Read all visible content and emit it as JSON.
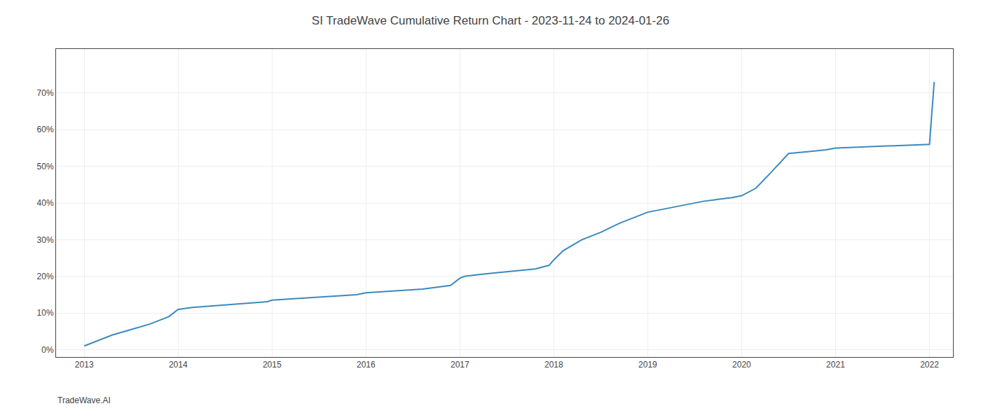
{
  "chart_data": {
    "type": "line",
    "title": "SI TradeWave Cumulative Return Chart - 2023-11-24 to 2024-01-26",
    "annotations": [
      "TradeWave.AI"
    ],
    "color": "#3a8abf",
    "grid": true,
    "x": [
      2013.0,
      2013.15,
      2013.3,
      2013.5,
      2013.7,
      2013.9,
      2014.0,
      2014.15,
      2014.4,
      2014.6,
      2014.8,
      2014.95,
      2015.0,
      2015.3,
      2015.6,
      2015.9,
      2016.0,
      2016.3,
      2016.6,
      2016.9,
      2017.0,
      2017.05,
      2017.2,
      2017.4,
      2017.6,
      2017.8,
      2017.95,
      2018.0,
      2018.1,
      2018.3,
      2018.5,
      2018.7,
      2018.9,
      2019.0,
      2019.2,
      2019.4,
      2019.6,
      2019.75,
      2019.9,
      2020.0,
      2020.15,
      2020.3,
      2020.5,
      2020.7,
      2020.9,
      2021.0,
      2021.3,
      2021.6,
      2021.9,
      2022.0,
      2022.05
    ],
    "values": [
      0.01,
      0.025,
      0.04,
      0.055,
      0.07,
      0.09,
      0.11,
      0.115,
      0.12,
      0.125,
      0.128,
      0.131,
      0.135,
      0.14,
      0.145,
      0.15,
      0.155,
      0.16,
      0.165,
      0.175,
      0.195,
      0.2,
      0.205,
      0.21,
      0.215,
      0.22,
      0.23,
      0.245,
      0.27,
      0.3,
      0.32,
      0.345,
      0.365,
      0.375,
      0.385,
      0.395,
      0.405,
      0.41,
      0.415,
      0.42,
      0.44,
      0.48,
      0.535,
      0.54,
      0.545,
      0.55,
      0.553,
      0.556,
      0.558,
      0.56,
      0.73
    ],
    "xlim": [
      2012.7,
      2022.25
    ],
    "xticks": [
      2013,
      2014,
      2015,
      2016,
      2017,
      2018,
      2019,
      2020,
      2021,
      2022
    ],
    "ylim": [
      -0.02,
      0.82
    ],
    "yticks": [
      {
        "value": 0.0,
        "label": "0%"
      },
      {
        "value": 0.1,
        "label": "10%"
      },
      {
        "value": 0.2,
        "label": "20%"
      },
      {
        "value": 0.3,
        "label": "30%"
      },
      {
        "value": 0.4,
        "label": "40%"
      },
      {
        "value": 0.5,
        "label": "50%"
      },
      {
        "value": 0.6,
        "label": "60%"
      },
      {
        "value": 0.7,
        "label": "70%"
      }
    ]
  }
}
